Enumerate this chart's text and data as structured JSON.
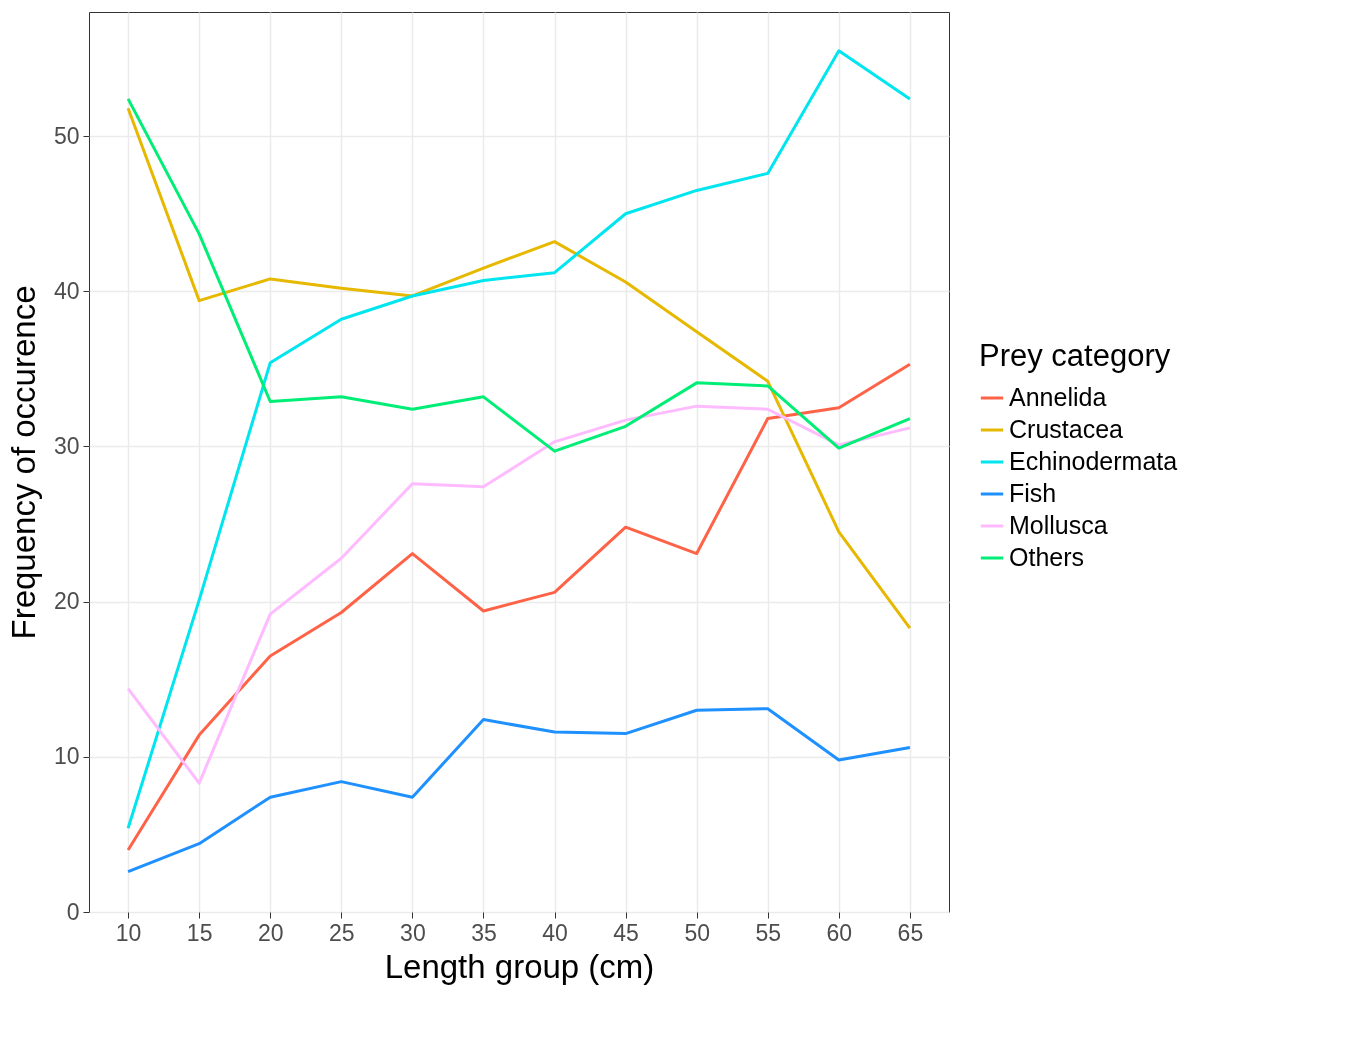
{
  "chart_data": {
    "type": "line",
    "xlabel": "Length group (cm)",
    "ylabel": "Frequency of occurence",
    "legend_title": "Prey category",
    "x": [
      10,
      15,
      20,
      25,
      30,
      35,
      40,
      45,
      50,
      55,
      60,
      65
    ],
    "series": [
      {
        "name": "Annelida",
        "color": "#ff6347",
        "values": [
          4.0,
          11.4,
          16.5,
          19.3,
          23.1,
          19.4,
          20.6,
          24.8,
          23.1,
          31.8,
          32.5,
          35.3
        ]
      },
      {
        "name": "Crustacea",
        "color": "#e6b800",
        "values": [
          51.8,
          39.4,
          40.8,
          40.2,
          39.7,
          41.5,
          43.2,
          40.6,
          37.4,
          34.2,
          24.5,
          18.3
        ]
      },
      {
        "name": "Echinodermata",
        "color": "#00e5ee",
        "values": [
          5.4,
          20.1,
          35.4,
          38.2,
          39.7,
          40.7,
          41.2,
          45.0,
          46.5,
          47.6,
          55.5,
          52.4
        ]
      },
      {
        "name": "Fish",
        "color": "#1e90ff",
        "values": [
          2.6,
          4.4,
          7.4,
          8.4,
          7.4,
          12.4,
          11.6,
          11.5,
          13.0,
          13.1,
          9.8,
          10.6
        ]
      },
      {
        "name": "Mollusca",
        "color": "#ffbbff",
        "values": [
          14.4,
          8.3,
          19.2,
          22.8,
          27.6,
          27.4,
          30.3,
          31.7,
          32.6,
          32.4,
          30.1,
          31.2
        ]
      },
      {
        "name": "Others",
        "color": "#00ee76",
        "values": [
          52.4,
          43.7,
          32.9,
          33.2,
          32.4,
          33.2,
          29.7,
          31.3,
          34.1,
          33.9,
          29.9,
          31.8
        ]
      }
    ],
    "xlim": [
      7.25,
      67.75
    ],
    "xticks": [
      10,
      15,
      20,
      25,
      30,
      35,
      40,
      45,
      50,
      55,
      60,
      65
    ],
    "ylim": [
      0,
      58
    ],
    "yticks": [
      0,
      10,
      20,
      30,
      40,
      50
    ],
    "grid": true,
    "legend": "right"
  }
}
